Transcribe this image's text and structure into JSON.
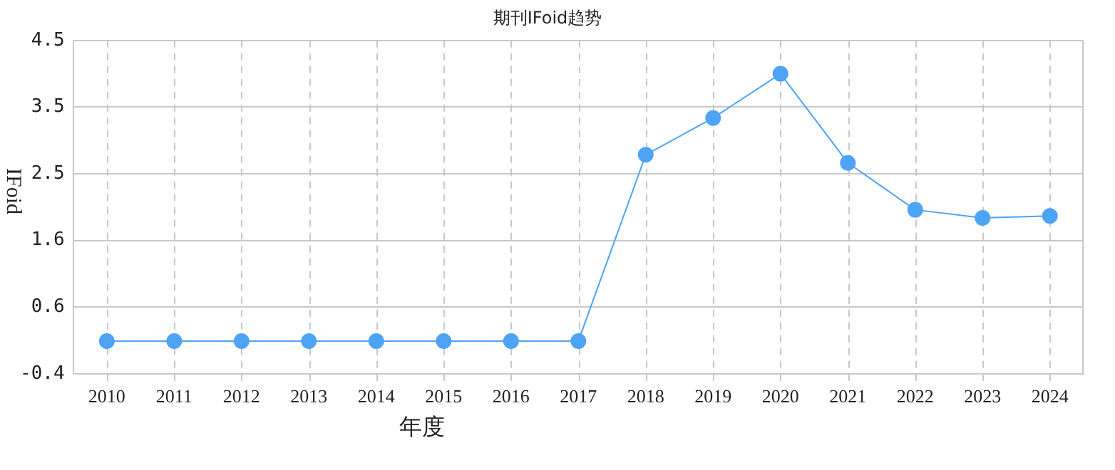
{
  "chart_data": {
    "type": "line",
    "title": "期刊IFoid趋势",
    "xlabel": "年度",
    "ylabel": "IFoid",
    "categories": [
      "2010",
      "2011",
      "2012",
      "2013",
      "2014",
      "2015",
      "2016",
      "2017",
      "2018",
      "2019",
      "2020",
      "2021",
      "2022",
      "2023",
      "2024"
    ],
    "series": [
      {
        "color": "#4da3f5",
        "values": [
          0.08,
          0.08,
          0.08,
          0.08,
          0.08,
          0.08,
          0.08,
          0.08,
          2.82,
          3.36,
          4.01,
          2.7,
          2.01,
          1.89,
          1.92
        ]
      }
    ],
    "ylim": [
      -0.4,
      4.5
    ],
    "yticks": [
      -0.4,
      {
        "value": 0.58,
        "label": "0.6"
      },
      {
        "value": 1.56,
        "label": "1.6"
      },
      {
        "value": 2.54,
        "label": "2.5"
      },
      {
        "value": 3.52,
        "label": "3.5"
      },
      4.5
    ],
    "grid": true,
    "legend": false,
    "marker": "circle",
    "line_style": "solid"
  }
}
